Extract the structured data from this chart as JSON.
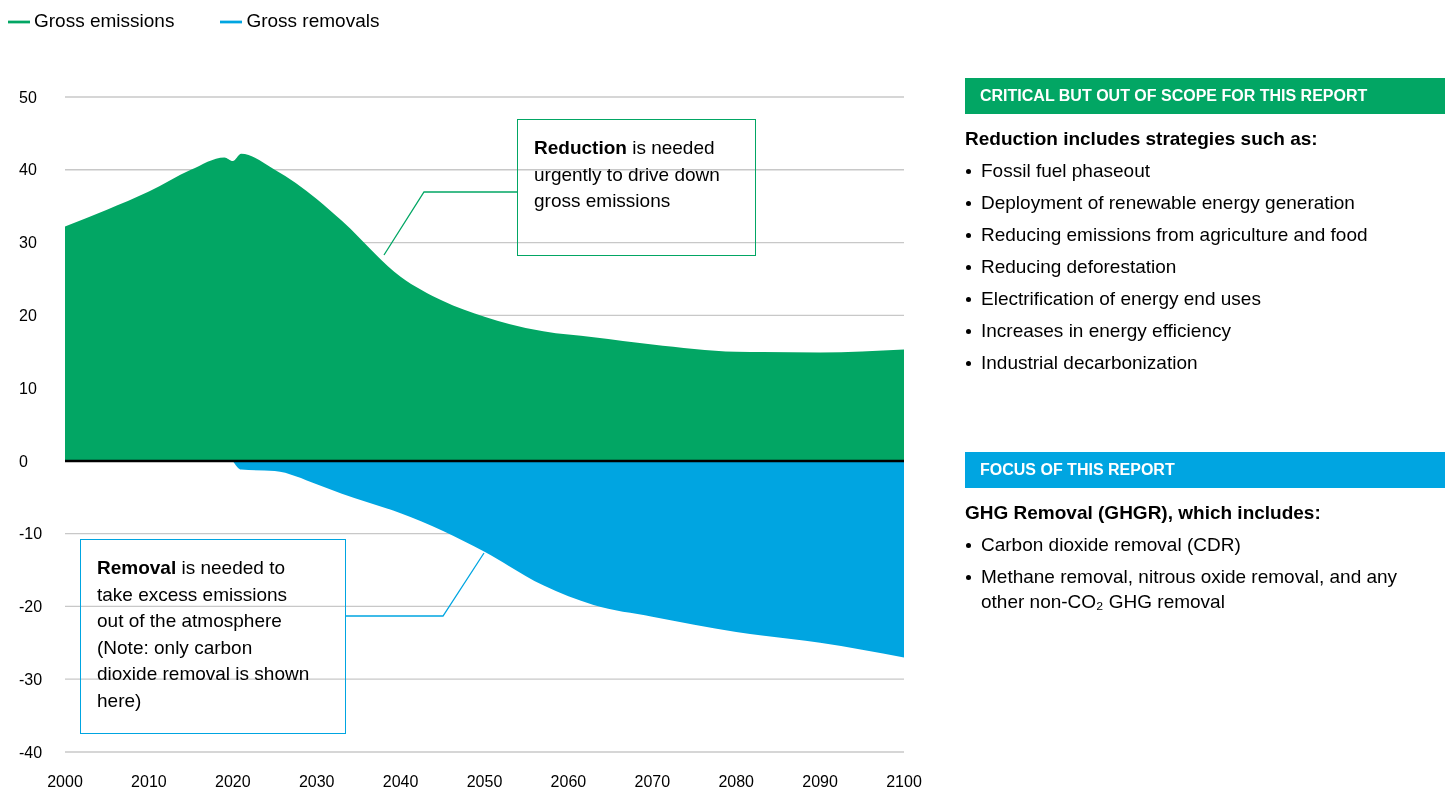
{
  "chart_data": [
    {
      "type": "area",
      "x": [
        2000,
        2005,
        2010,
        2015,
        2019,
        2020,
        2021,
        2025,
        2030,
        2033,
        2040,
        2045,
        2050,
        2057,
        2063,
        2070,
        2080,
        2090,
        2100
      ],
      "series": [
        {
          "name": "Gross emissions",
          "color": "#02a664",
          "values": [
            32.2,
            34.5,
            37,
            40,
            41.7,
            41.2,
            42.2,
            40,
            36,
            33,
            25.3,
            22,
            19.8,
            17.8,
            17,
            16,
            15,
            14.9,
            15.3
          ]
        },
        {
          "name": "Gross removals",
          "color": "#00a5e1",
          "values": [
            null,
            null,
            null,
            null,
            null,
            0,
            -1.2,
            -1.4,
            -3.2,
            -4.5,
            -7.2,
            -9.6,
            -12.5,
            -17.1,
            -19.8,
            -21.4,
            -23.5,
            -25,
            -27
          ]
        }
      ],
      "xlim": [
        2000,
        2100
      ],
      "xticks": [
        2000,
        2010,
        2020,
        2030,
        2040,
        2050,
        2060,
        2070,
        2080,
        2090,
        2100
      ],
      "ylim": [
        -40,
        50
      ],
      "yticks": [
        -40,
        -30,
        -20,
        -10,
        0,
        10,
        20,
        30,
        40,
        50
      ],
      "grid": "y",
      "legend": "top left",
      "ref_lines": [
        {
          "axis": "y",
          "value": 0,
          "color": "#000000"
        }
      ],
      "annotations": [
        "Reduction is needed urgently to drive down gross emissions",
        "Removal is needed to take excess emissions out of the atmosphere (Note: only carbon dioxide removal is shown here)"
      ]
    },
    {
      "type": "other",
      "title": "CRITICAL BUT OUT OF SCOPE FOR THIS REPORT",
      "subtitle": "Reduction includes strategies such as:",
      "annotations": [
        "Fossil fuel phaseout",
        "Deployment of renewable energy generation",
        "Reducing emissions from agriculture and food",
        "Reducing deforestation",
        "Electrification of energy end uses",
        "Increases in energy efficiency",
        "Industrial decarbonization"
      ]
    },
    {
      "type": "other",
      "title": "FOCUS OF THIS REPORT",
      "subtitle": "GHG Removal (GHGR), which includes:",
      "annotations": [
        "Carbon dioxide removal (CDR)",
        "Methane removal, nitrous oxide removal, and any other non-CO₂ GHG removal"
      ]
    }
  ]
}
